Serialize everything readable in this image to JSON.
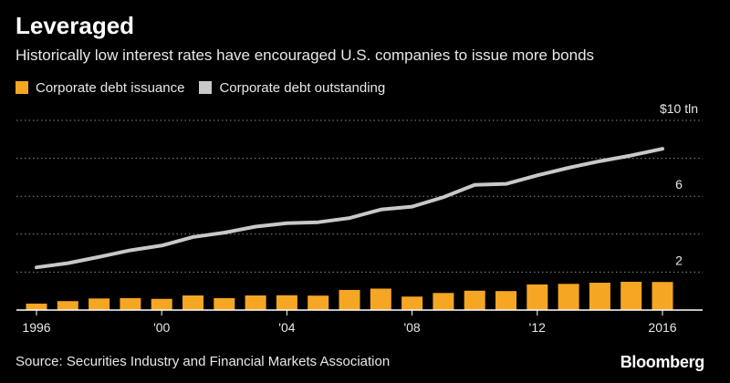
{
  "title": "Leveraged",
  "subtitle": "Historically low interest rates have encouraged U.S. companies to issue more bonds",
  "source": "Source: Securities Industry and Financial Markets Association",
  "brand": "Bloomberg",
  "colors": {
    "background": "#000000",
    "issuance": "#f5a623",
    "outstanding": "#c8c8c8",
    "grid": "#8a8a8a",
    "axis": "#ffffff"
  },
  "chart_data": {
    "type": "bar",
    "x": [
      1996,
      1997,
      1998,
      1999,
      2000,
      2001,
      2002,
      2003,
      2004,
      2005,
      2006,
      2007,
      2008,
      2009,
      2010,
      2011,
      2012,
      2013,
      2014,
      2015,
      2016
    ],
    "series": [
      {
        "name": "Corporate debt issuance",
        "type": "bar",
        "values": [
          0.34,
          0.47,
          0.61,
          0.63,
          0.59,
          0.77,
          0.63,
          0.77,
          0.78,
          0.76,
          1.06,
          1.13,
          0.71,
          0.9,
          1.02,
          1.0,
          1.35,
          1.38,
          1.44,
          1.49,
          1.48
        ]
      },
      {
        "name": "Corporate debt outstanding",
        "type": "line",
        "values": [
          2.25,
          2.47,
          2.8,
          3.15,
          3.4,
          3.85,
          4.08,
          4.4,
          4.58,
          4.63,
          4.85,
          5.3,
          5.45,
          5.95,
          6.6,
          6.65,
          7.1,
          7.5,
          7.85,
          8.15,
          8.5
        ]
      }
    ],
    "xticks": [
      {
        "value": 1996,
        "label": "1996"
      },
      {
        "value": 2000,
        "label": "'00"
      },
      {
        "value": 2004,
        "label": "'04"
      },
      {
        "value": 2008,
        "label": "'08"
      },
      {
        "value": 2012,
        "label": "'12"
      },
      {
        "value": 2016,
        "label": "2016"
      }
    ],
    "yticks": [
      {
        "value": 10,
        "label": "$10 tln"
      },
      {
        "value": 8,
        "label": ""
      },
      {
        "value": 6,
        "label": "6"
      },
      {
        "value": 4,
        "label": ""
      },
      {
        "value": 2,
        "label": "2"
      }
    ],
    "ylim": [
      0,
      10
    ],
    "grid": true,
    "legend": "top-left"
  }
}
